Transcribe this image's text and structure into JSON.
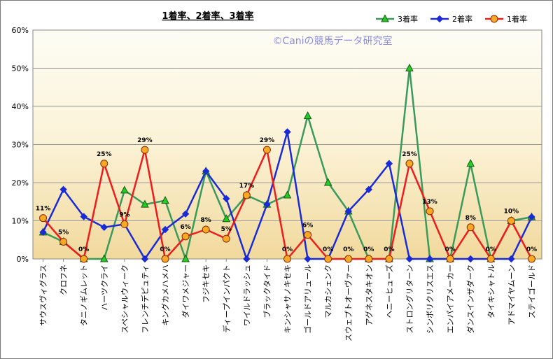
{
  "chart_data": {
    "type": "line",
    "title": "1着率、2着率、3着率",
    "watermark": "©Caniの競馬データ研究室",
    "ylim": [
      0,
      60
    ],
    "yticks": [
      "0%",
      "10%",
      "20%",
      "30%",
      "40%",
      "50%",
      "60%"
    ],
    "grid": "horizontal",
    "legend_position": "top-right",
    "categories": [
      "サウスヴィグラス",
      "クロフネ",
      "タニノギムレット",
      "ハーツクライ",
      "スペシャルウィーク",
      "フレンチデピュティ",
      "キングカメハメハ",
      "ダイワメジャー",
      "フジキセキ",
      "ディープインパクト",
      "ワイルドラッシュ",
      "ブラックタイド",
      "キンシャサノキセキ",
      "ゴールドアリュール",
      "マルカシェンク",
      "スウェプトオーヴァー",
      "アグネスタキオン",
      "ヘニーヒューズ",
      "ストロングリターン",
      "シンボリクリスエス",
      "エンパイアメーカー",
      "ダンスインザダーク",
      "タイキシャトル",
      "アドマイヤムーン",
      "ステイゴールド"
    ],
    "series": [
      {
        "name": "3着率",
        "color": "#3a9a5c",
        "marker": "triangle",
        "marker_color": "#22cc22",
        "values": [
          7,
          4.5,
          0,
          0,
          18,
          14.3,
          15.3,
          0,
          23,
          10.5,
          16.7,
          14.3,
          16.7,
          37.5,
          20,
          12.5,
          0,
          0,
          50,
          0,
          0,
          25,
          0,
          10,
          11
        ]
      },
      {
        "name": "2着率",
        "color": "#1a2bd6",
        "marker": "diamond",
        "marker_color": "#1a2bd6",
        "values": [
          7,
          18.2,
          11.1,
          8.3,
          9.1,
          0,
          7.7,
          11.8,
          23,
          15.8,
          0,
          14.3,
          33.3,
          0,
          0,
          12.5,
          18.2,
          25,
          0,
          0,
          0,
          0,
          0,
          0,
          11
        ]
      },
      {
        "name": "1着率",
        "color": "#ee1c1c",
        "marker": "circle",
        "marker_color": "#f7a825",
        "values": [
          10.7,
          4.5,
          0,
          25,
          9.1,
          28.6,
          0,
          5.9,
          7.7,
          5.3,
          16.7,
          28.6,
          0,
          6.3,
          0,
          0,
          0,
          0,
          25,
          12.5,
          0,
          8.3,
          0,
          10,
          0
        ],
        "data_labels": [
          "11%",
          "5%",
          "0%",
          "25%",
          "9%",
          "29%",
          "0%",
          "6%",
          "8%",
          "5%",
          "17%",
          "29%",
          "0%",
          "6%",
          "0%",
          "0%",
          "0%",
          "0%",
          "25%",
          "13%",
          "0%",
          "8%",
          "0%",
          "10%",
          "0%"
        ]
      }
    ]
  }
}
